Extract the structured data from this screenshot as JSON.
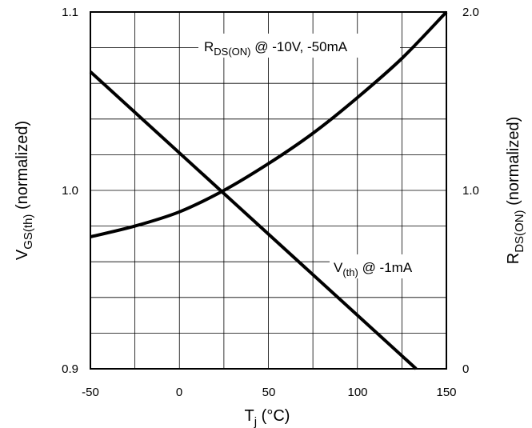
{
  "chart_data": {
    "type": "line",
    "title": "",
    "x_axis": {
      "label_main": "T",
      "label_sub": "j",
      "label_unit": " (°C)",
      "range": [
        -50,
        150
      ],
      "ticks": [
        -50,
        0,
        50,
        100,
        150
      ],
      "tick_labels": [
        "-50",
        "0",
        "50",
        "100",
        "150"
      ],
      "grid_step": 25
    },
    "y_axis_left": {
      "label_main": "V",
      "label_sub": "GS(th)",
      "label_unit": " (normalized)",
      "range": [
        0.9,
        1.1
      ],
      "tick_labels": [
        "1.1",
        "1.0",
        "0.9"
      ],
      "tick_values": [
        1.1,
        1.0,
        0.9
      ],
      "grid_step": 0.02
    },
    "y_axis_right": {
      "label_main": "R",
      "label_sub": "DS(ON)",
      "label_unit": " (normalized)",
      "range": [
        0,
        2.0
      ],
      "tick_labels": [
        "2.0",
        "1.0",
        "0"
      ],
      "tick_values": [
        2.0,
        1.0,
        0
      ]
    },
    "grid": true,
    "series": [
      {
        "name": "V(th) @ -1mA",
        "axis": "left",
        "x": [
          -50,
          133
        ],
        "y": [
          1.0665,
          0.9
        ]
      },
      {
        "name": "RDS(ON) @ -10V, -50mA",
        "axis": "right",
        "x": [
          -50,
          -25,
          0,
          25,
          50,
          75,
          100,
          125,
          150
        ],
        "y": [
          0.74,
          0.8,
          0.88,
          1.0,
          1.15,
          1.32,
          1.52,
          1.74,
          2.0
        ]
      }
    ],
    "annotations": [
      {
        "series": 1,
        "main": "R",
        "sub": "DS(ON)",
        "rest": " @ -10V, -50mA"
      },
      {
        "series": 0,
        "main": "V",
        "sub": "(th)",
        "rest": " @ -1mA"
      }
    ]
  }
}
